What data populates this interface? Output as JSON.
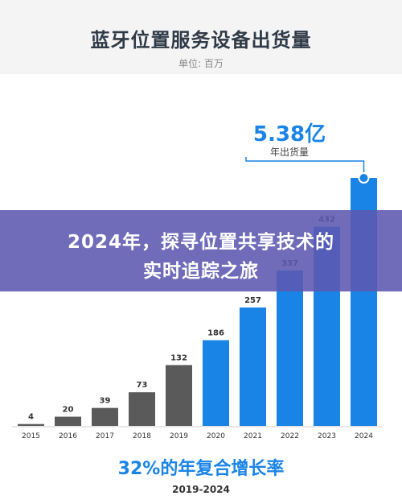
{
  "header": {
    "title": "蓝牙位置服务设备出货量",
    "unit": "单位: 百万"
  },
  "callout": {
    "value": "5.38亿",
    "label": "年出货量"
  },
  "overlay": {
    "line1": "2024年，探寻位置共享技术的",
    "line2": "实时追踪之旅"
  },
  "footer": {
    "cagr": "32%的年复合增长率",
    "period": "2019-2024"
  },
  "colors": {
    "historical": "#5a5a5a",
    "forecast": "#1a84e6"
  },
  "chart_data": {
    "type": "bar",
    "title": "蓝牙位置服务设备出货量",
    "subtitle": "单位: 百万",
    "categories": [
      "2015",
      "2016",
      "2017",
      "2018",
      "2019",
      "2020",
      "2021",
      "2022",
      "2023",
      "2024"
    ],
    "values": [
      4,
      20,
      39,
      73,
      132,
      186,
      257,
      337,
      432,
      538
    ],
    "value_labels": [
      "4",
      "20",
      "39",
      "73",
      "132",
      "186",
      "257",
      "337",
      "432",
      ""
    ],
    "forecast_from_index": 5,
    "ylim": [
      0,
      538
    ],
    "grid": false,
    "legend": "none"
  }
}
